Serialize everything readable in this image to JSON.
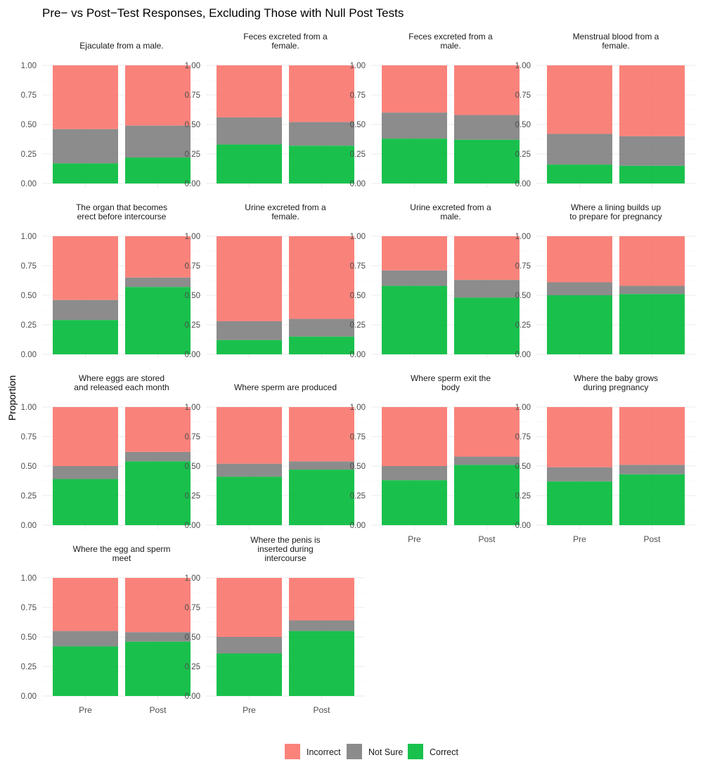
{
  "chart_data": {
    "type": "bar",
    "stacked": true,
    "title": "Pre− vs Post−Test Responses, Excluding Those with Null Post Tests",
    "ylabel": "Proportion",
    "xlabel": "",
    "ylim": [
      0,
      1
    ],
    "yticks": [
      "0.00",
      "0.25",
      "0.50",
      "0.75",
      "1.00"
    ],
    "categories": [
      "Pre",
      "Post"
    ],
    "grid": true,
    "legend_position": "bottom",
    "legend": [
      {
        "name": "Incorrect",
        "color": "#F8766D"
      },
      {
        "name": "Not Sure",
        "color": "#808080"
      },
      {
        "name": "Correct",
        "color": "#00BA38"
      }
    ],
    "panels": [
      {
        "title": [
          "Ejaculate from a male."
        ],
        "correct": [
          0.17,
          0.22
        ],
        "not_sure": [
          0.29,
          0.27
        ]
      },
      {
        "title": [
          "Feces excreted from a",
          "female."
        ],
        "correct": [
          0.33,
          0.32
        ],
        "not_sure": [
          0.23,
          0.2
        ]
      },
      {
        "title": [
          "Feces excreted from a",
          "male."
        ],
        "correct": [
          0.38,
          0.37
        ],
        "not_sure": [
          0.22,
          0.21
        ]
      },
      {
        "title": [
          "Menstrual blood from a",
          "female."
        ],
        "correct": [
          0.16,
          0.15
        ],
        "not_sure": [
          0.26,
          0.25
        ]
      },
      {
        "title": [
          "The organ that becomes",
          "erect before intercourse"
        ],
        "correct": [
          0.29,
          0.57
        ],
        "not_sure": [
          0.17,
          0.08
        ]
      },
      {
        "title": [
          "Urine excreted from a",
          "female."
        ],
        "correct": [
          0.12,
          0.15
        ],
        "not_sure": [
          0.16,
          0.15
        ]
      },
      {
        "title": [
          "Urine excreted from a",
          "male."
        ],
        "correct": [
          0.58,
          0.48
        ],
        "not_sure": [
          0.13,
          0.15
        ]
      },
      {
        "title": [
          "Where a lining builds up",
          "to prepare for pregnancy"
        ],
        "correct": [
          0.5,
          0.51
        ],
        "not_sure": [
          0.11,
          0.07
        ]
      },
      {
        "title": [
          "Where eggs are stored",
          "and released each month"
        ],
        "correct": [
          0.39,
          0.54
        ],
        "not_sure": [
          0.11,
          0.08
        ]
      },
      {
        "title": [
          "Where sperm are produced"
        ],
        "correct": [
          0.41,
          0.47
        ],
        "not_sure": [
          0.11,
          0.07
        ]
      },
      {
        "title": [
          "Where sperm exit the",
          "body"
        ],
        "correct": [
          0.38,
          0.51
        ],
        "not_sure": [
          0.12,
          0.07
        ]
      },
      {
        "title": [
          "Where the baby grows",
          "during pregnancy"
        ],
        "correct": [
          0.37,
          0.43
        ],
        "not_sure": [
          0.12,
          0.08
        ]
      },
      {
        "title": [
          "Where the egg and sperm",
          "meet"
        ],
        "correct": [
          0.42,
          0.46
        ],
        "not_sure": [
          0.13,
          0.08
        ]
      },
      {
        "title": [
          "Where the penis is",
          "inserted during",
          "intercourse"
        ],
        "correct": [
          0.36,
          0.55
        ],
        "not_sure": [
          0.14,
          0.09
        ]
      }
    ]
  }
}
